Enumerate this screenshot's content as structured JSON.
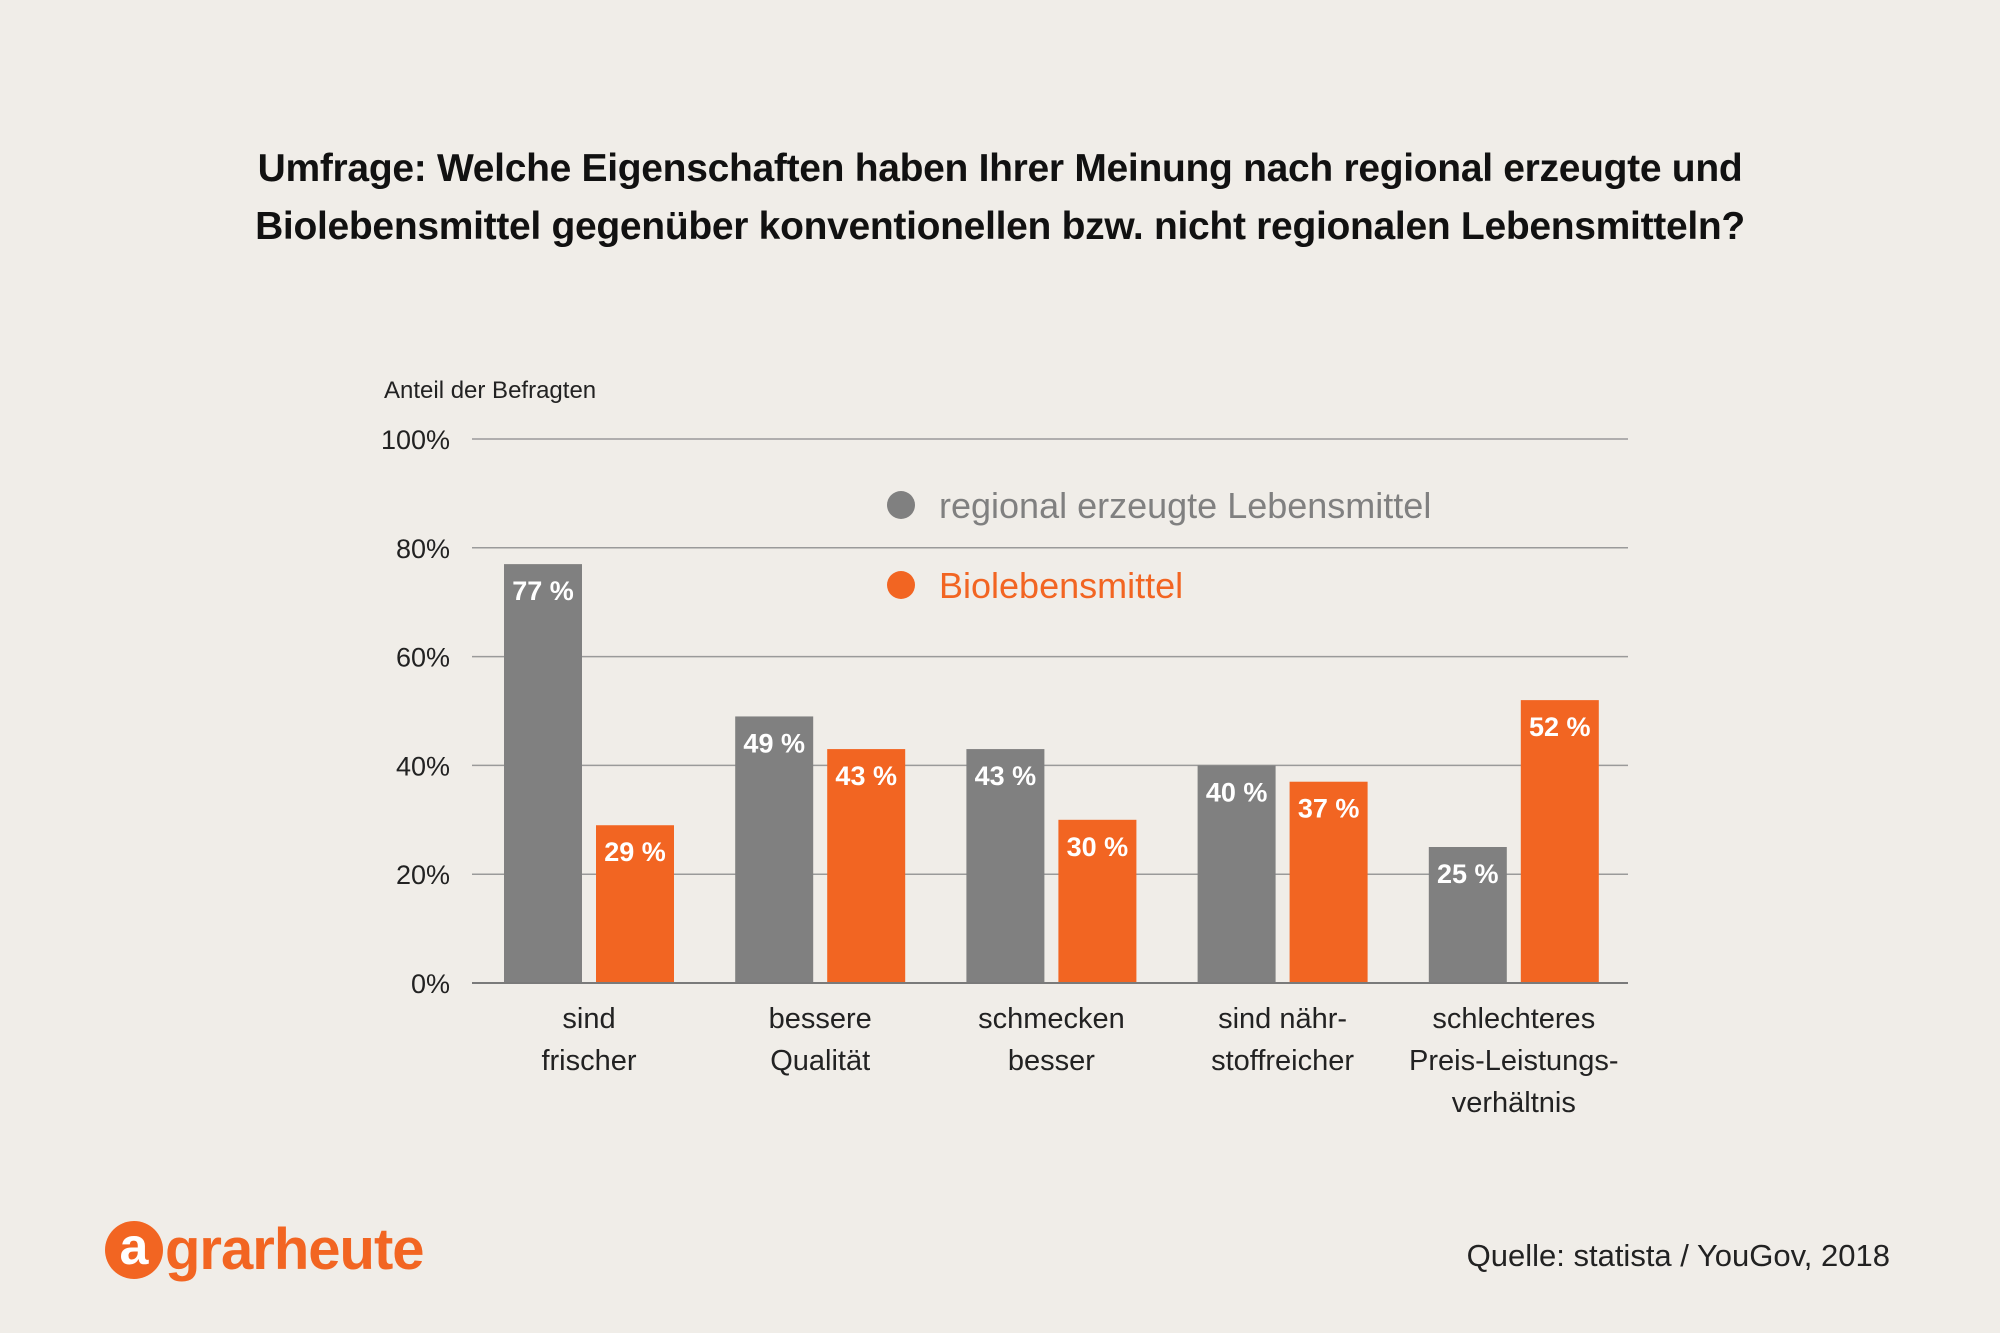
{
  "title_line1": "Umfrage: Welche Eigenschaften haben Ihrer Meinung nach regional erzeugte und",
  "title_line2": "Biolebensmittel gegenüber konventionellen bzw. nicht regionalen Lebensmitteln?",
  "source": "Quelle: statista / YouGov, 2018",
  "logo": {
    "circle_letter": "a",
    "text": "grarheute"
  },
  "colors": {
    "regional": "#808080",
    "bio": "#f26522",
    "grid": "#9a9a9a",
    "background": "#f0ede8"
  },
  "chart_data": {
    "type": "bar",
    "ylabel": "Anteil der Befragten",
    "ylim": [
      0,
      100
    ],
    "yticks": [
      0,
      20,
      40,
      60,
      80,
      100
    ],
    "ytick_labels": [
      "0%",
      "20%",
      "40%",
      "60%",
      "80%",
      "100%"
    ],
    "grid": true,
    "legend_position": "top-center",
    "categories": [
      [
        "sind",
        "frischer"
      ],
      [
        "bessere",
        "Qualität"
      ],
      [
        "schmecken",
        "besser"
      ],
      [
        "sind nähr-",
        "stoffreicher"
      ],
      [
        "schlechteres",
        "Preis-Leistungs-",
        "verhältnis"
      ]
    ],
    "series": [
      {
        "name": "regional erzeugte Lebensmittel",
        "color": "#808080",
        "values": [
          77,
          49,
          43,
          40,
          25
        ],
        "labels": [
          "77 %",
          "49 %",
          "43 %",
          "40 %",
          "25 %"
        ]
      },
      {
        "name": "Biolebensmittel",
        "color": "#f26522",
        "values": [
          29,
          43,
          30,
          37,
          52
        ],
        "labels": [
          "29 %",
          "43 %",
          "30 %",
          "37 %",
          "52 %"
        ]
      }
    ]
  }
}
